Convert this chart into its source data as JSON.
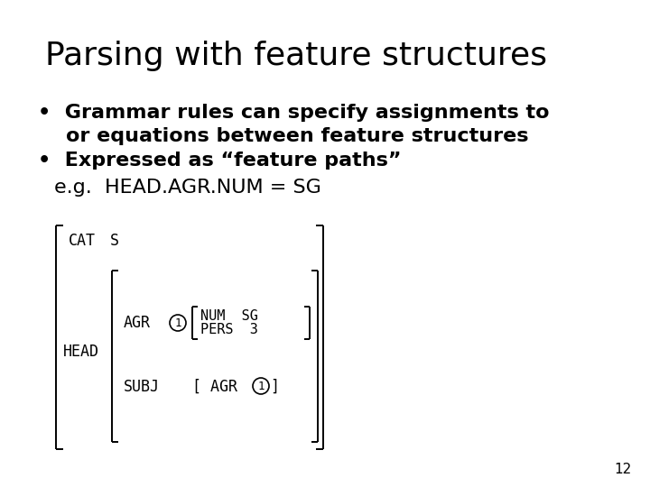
{
  "title": "Parsing with feature structures",
  "bullet1_line1": "•  Grammar rules can specify assignments to",
  "bullet1_line2": "    or equations between feature structures",
  "bullet2": "•  Expressed as “feature paths”",
  "example": "e.g.  HEAD.AGR.NUM = SG",
  "page_number": "12",
  "bg_color": "#ffffff",
  "text_color": "#000000",
  "title_fontsize": 26,
  "body_fontsize": 16,
  "example_fontsize": 16,
  "mono_fontsize": 12,
  "page_num_fontsize": 11
}
